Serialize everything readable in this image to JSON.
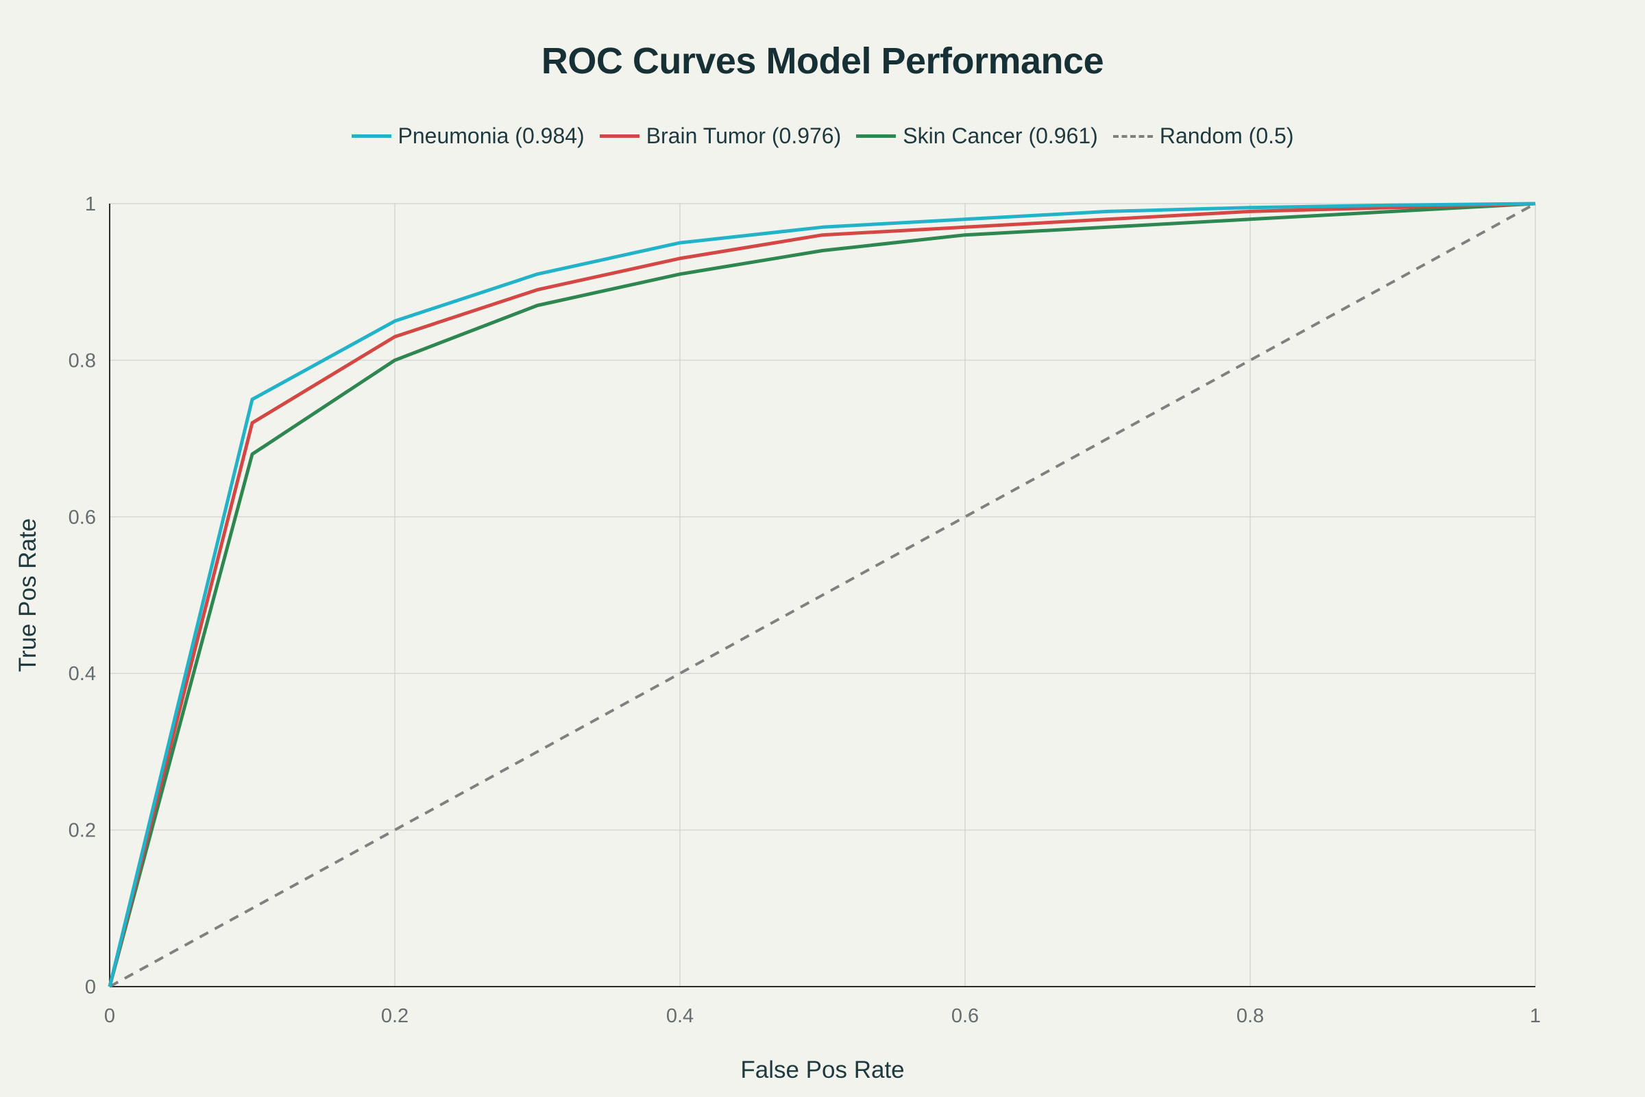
{
  "chart_data": {
    "type": "line",
    "title": "ROC Curves Model Performance",
    "xlabel": "False Pos Rate",
    "ylabel": "True Pos Rate",
    "xlim": [
      0,
      1
    ],
    "ylim": [
      0,
      1
    ],
    "grid": true,
    "legend_placement": "top-center",
    "x_ticks": [
      "0",
      "0.2",
      "0.4",
      "0.6",
      "0.8",
      "1"
    ],
    "y_ticks": [
      "0",
      "0.2",
      "0.4",
      "0.6",
      "0.8",
      "1"
    ],
    "series": [
      {
        "name": "Pneumonia (0.984)",
        "color": "#22b3c9",
        "dash": "solid",
        "x": [
          0,
          0.1,
          0.2,
          0.3,
          0.4,
          0.5,
          0.6,
          0.7,
          0.8,
          0.9,
          1.0
        ],
        "y": [
          0,
          0.75,
          0.85,
          0.91,
          0.95,
          0.97,
          0.98,
          0.99,
          0.995,
          0.998,
          1.0
        ]
      },
      {
        "name": "Brain Tumor (0.976)",
        "color": "#d34745",
        "dash": "solid",
        "x": [
          0,
          0.1,
          0.2,
          0.3,
          0.4,
          0.5,
          0.6,
          0.7,
          0.8,
          0.9,
          1.0
        ],
        "y": [
          0,
          0.72,
          0.83,
          0.89,
          0.93,
          0.96,
          0.97,
          0.98,
          0.99,
          0.995,
          1.0
        ]
      },
      {
        "name": "Skin Cancer (0.961)",
        "color": "#2e8650",
        "dash": "solid",
        "x": [
          0,
          0.1,
          0.2,
          0.3,
          0.4,
          0.5,
          0.6,
          0.7,
          0.8,
          0.9,
          1.0
        ],
        "y": [
          0,
          0.68,
          0.8,
          0.87,
          0.91,
          0.94,
          0.96,
          0.97,
          0.98,
          0.99,
          1.0
        ]
      },
      {
        "name": "Random (0.5)",
        "color": "#808080",
        "dash": "dashed",
        "x": [
          0,
          1
        ],
        "y": [
          0,
          1
        ]
      }
    ]
  }
}
